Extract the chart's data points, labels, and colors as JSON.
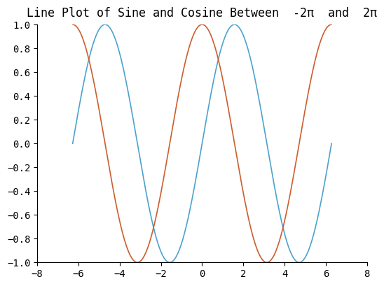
{
  "title": "Line Plot of Sine and Cosine Between  -2π  and  2π",
  "xlim": [
    -8,
    8
  ],
  "ylim": [
    -1,
    1
  ],
  "xticks": [
    -8,
    -6,
    -4,
    -2,
    0,
    2,
    4,
    6,
    8
  ],
  "yticks": [
    -1.0,
    -0.8,
    -0.6,
    -0.4,
    -0.2,
    0.0,
    0.2,
    0.4,
    0.6,
    0.8,
    1.0
  ],
  "sine_color": "#4CA3CD",
  "cosine_color": "#CC5E2E",
  "background_color": "#ffffff",
  "title_fontsize": 12,
  "line_width": 1.2,
  "font_family": "DejaVu Sans Mono"
}
